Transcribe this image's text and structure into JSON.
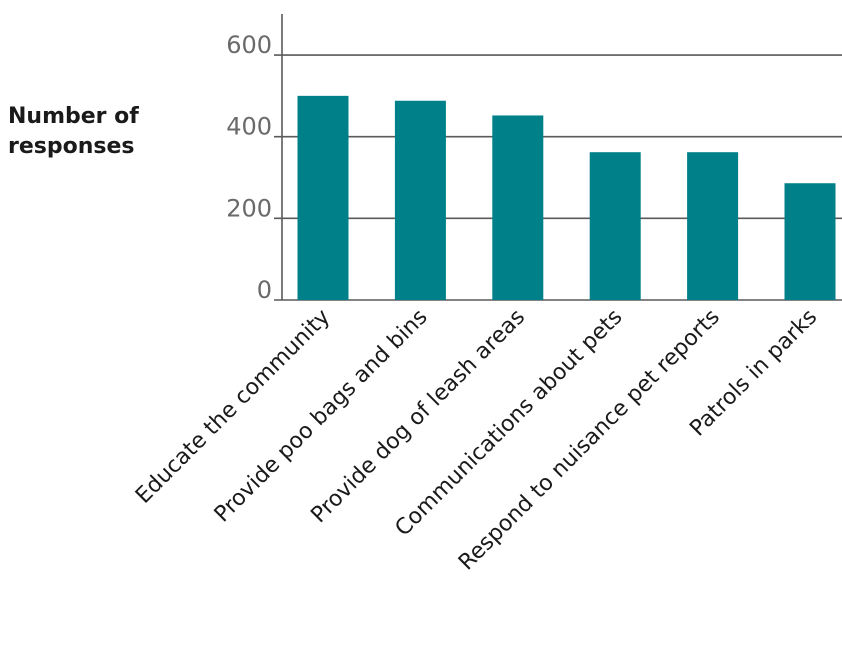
{
  "chart_data": {
    "type": "bar",
    "title": "",
    "xlabel": "",
    "ylabel_lines": [
      "Number of",
      "responses"
    ],
    "categories": [
      "Educate the community",
      "Provide poo bags and bins",
      "Provide dog of leash areas",
      "Communications about pets",
      "Respond to nuisance pet reports",
      "Patrols in parks"
    ],
    "values": [
      500,
      488,
      452,
      362,
      362,
      286
    ],
    "ylim": [
      0,
      700
    ],
    "yticks": [
      0,
      200,
      400,
      600
    ],
    "grid": true,
    "colors": {
      "bar": "#00818a",
      "grid": "#5a5a5a",
      "axis": "#5a5a5a",
      "tick_text": "#6a6a6a",
      "label_text": "#1a1a1a"
    }
  }
}
